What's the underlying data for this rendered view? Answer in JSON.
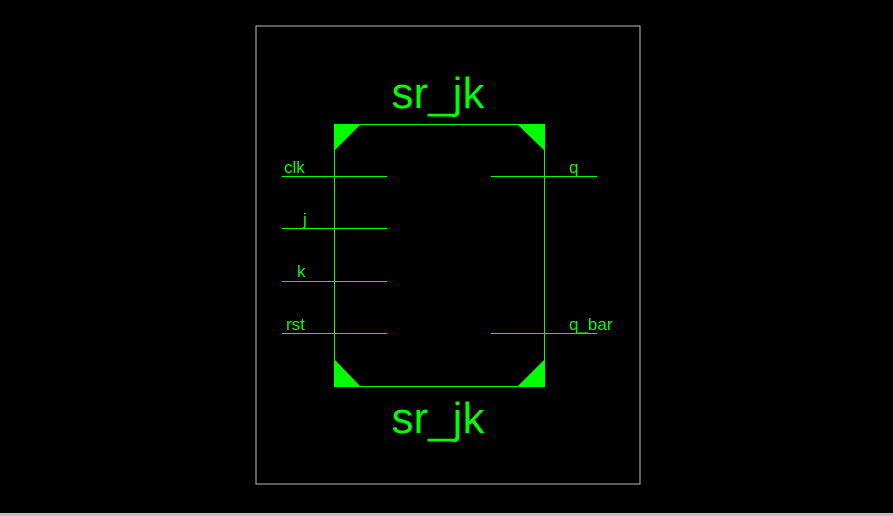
{
  "colors": {
    "background": "#000000",
    "frame": "#bdbdbd",
    "symbol": "#00ff00"
  },
  "symbol": {
    "name_top": "sr_jk",
    "name_bottom": "sr_jk"
  },
  "ports": {
    "inputs": [
      "clk",
      "j",
      "k",
      "rst"
    ],
    "outputs": [
      "q",
      "q_bar"
    ]
  }
}
